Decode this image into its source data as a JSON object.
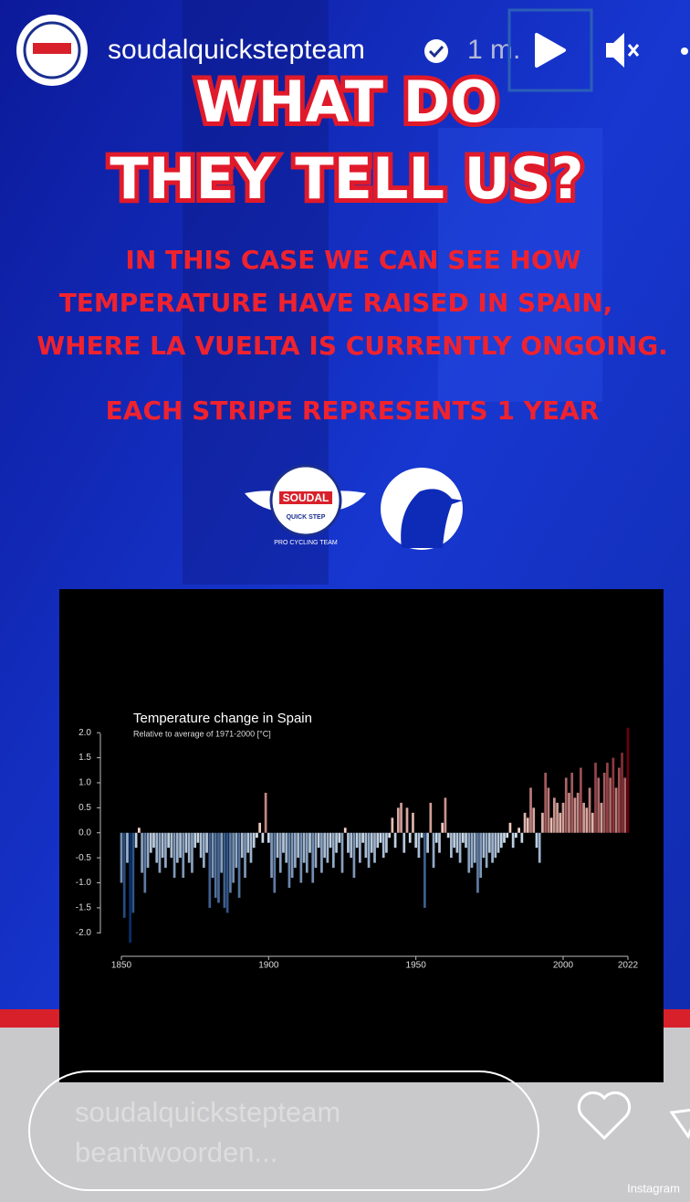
{
  "header": {
    "username": "soudalquickstepteam",
    "time": "1 m."
  },
  "story": {
    "heading": [
      "WHAT DO",
      "THEY TELL US?"
    ],
    "body": [
      "IN THIS CASE WE CAN SEE HOW",
      "TEMPERATURE HAVE RAISED IN SPAIN,",
      "WHERE LA VUELTA IS CURRENTLY ONGOING."
    ],
    "note": "EACH STRIPE REPRESENTS 1 YEAR",
    "logo": {
      "name": "SOUDAL",
      "sub": "QUICK STEP",
      "ring": "PRO CYCLING TEAM"
    }
  },
  "chart_data": {
    "type": "bar",
    "title": "Temperature change in Spain",
    "subtitle": "Relative to average of 1971-2000 [°C]",
    "x": [
      1850,
      1851,
      1852,
      1853,
      1854,
      1855,
      1856,
      1857,
      1858,
      1859,
      1860,
      1861,
      1862,
      1863,
      1864,
      1865,
      1866,
      1867,
      1868,
      1869,
      1870,
      1871,
      1872,
      1873,
      1874,
      1875,
      1876,
      1877,
      1878,
      1879,
      1880,
      1881,
      1882,
      1883,
      1884,
      1885,
      1886,
      1887,
      1888,
      1889,
      1890,
      1891,
      1892,
      1893,
      1894,
      1895,
      1896,
      1897,
      1898,
      1899,
      1900,
      1901,
      1902,
      1903,
      1904,
      1905,
      1906,
      1907,
      1908,
      1909,
      1910,
      1911,
      1912,
      1913,
      1914,
      1915,
      1916,
      1917,
      1918,
      1919,
      1920,
      1921,
      1922,
      1923,
      1924,
      1925,
      1926,
      1927,
      1928,
      1929,
      1930,
      1931,
      1932,
      1933,
      1934,
      1935,
      1936,
      1937,
      1938,
      1939,
      1940,
      1941,
      1942,
      1943,
      1944,
      1945,
      1946,
      1947,
      1948,
      1949,
      1950,
      1951,
      1952,
      1953,
      1954,
      1955,
      1956,
      1957,
      1958,
      1959,
      1960,
      1961,
      1962,
      1963,
      1964,
      1965,
      1966,
      1967,
      1968,
      1969,
      1970,
      1971,
      1972,
      1973,
      1974,
      1975,
      1976,
      1977,
      1978,
      1979,
      1980,
      1981,
      1982,
      1983,
      1984,
      1985,
      1986,
      1987,
      1988,
      1989,
      1990,
      1991,
      1992,
      1993,
      1994,
      1995,
      1996,
      1997,
      1998,
      1999,
      2000,
      2001,
      2002,
      2003,
      2004,
      2005,
      2006,
      2007,
      2008,
      2009,
      2010,
      2011,
      2012,
      2013,
      2014,
      2015,
      2016,
      2017,
      2018,
      2019,
      2020,
      2021,
      2022
    ],
    "values": [
      -1.0,
      -1.7,
      -0.6,
      -2.2,
      -1.6,
      -0.3,
      0.1,
      -0.8,
      -1.2,
      -0.7,
      -0.4,
      -0.3,
      -0.6,
      -0.8,
      -0.5,
      -0.7,
      -0.3,
      -0.5,
      -0.9,
      -0.6,
      -0.5,
      -0.9,
      -0.4,
      -0.6,
      -0.8,
      -0.3,
      -0.2,
      -0.5,
      -0.7,
      -0.4,
      -1.5,
      -0.9,
      -1.3,
      -1.4,
      -0.8,
      -1.5,
      -1.6,
      -1.2,
      -1.0,
      -0.7,
      -1.3,
      -0.5,
      -0.9,
      -0.4,
      -0.6,
      -0.3,
      -0.1,
      0.2,
      -0.2,
      0.8,
      -0.2,
      -0.9,
      -1.2,
      -0.5,
      -0.8,
      -0.4,
      -0.6,
      -1.1,
      -0.9,
      -0.7,
      -0.5,
      -1.0,
      -0.6,
      -0.8,
      -0.4,
      -1.0,
      -0.7,
      -0.3,
      -0.8,
      -0.5,
      -0.6,
      -0.3,
      -0.7,
      -0.4,
      -0.2,
      -0.8,
      0.1,
      -0.4,
      -0.5,
      -0.9,
      -0.3,
      -0.6,
      -0.2,
      -0.5,
      -0.7,
      -0.4,
      -0.6,
      -0.3,
      -0.2,
      -0.5,
      -0.4,
      -0.1,
      0.3,
      -0.3,
      0.5,
      0.6,
      -0.4,
      0.5,
      -0.2,
      0.4,
      -0.3,
      -0.5,
      -0.1,
      -1.5,
      -0.4,
      0.6,
      -0.7,
      -0.2,
      -0.4,
      0.2,
      0.7,
      -0.1,
      -0.5,
      -0.3,
      -0.4,
      -0.6,
      -0.2,
      -0.3,
      -0.8,
      -0.7,
      -0.6,
      -1.2,
      -0.9,
      -0.5,
      -0.7,
      -0.4,
      -0.6,
      -0.5,
      -0.4,
      -0.3,
      -0.2,
      -0.1,
      0.2,
      -0.3,
      -0.1,
      0.1,
      -0.2,
      0.4,
      0.3,
      0.9,
      0.5,
      -0.3,
      -0.6,
      0.4,
      1.2,
      0.9,
      0.3,
      0.7,
      0.6,
      0.4,
      0.6,
      1.1,
      0.8,
      1.2,
      0.7,
      0.8,
      1.3,
      0.6,
      0.5,
      0.9,
      0.4,
      1.4,
      1.1,
      0.6,
      1.2,
      1.4,
      1.1,
      1.5,
      0.9,
      1.3,
      1.6,
      1.1,
      2.1
    ],
    "xlim": [
      1850,
      2022
    ],
    "xticks": [
      1850,
      1900,
      1950,
      2000,
      2022
    ],
    "ylim": [
      -2.25,
      2.15
    ],
    "yticks": [
      {
        "value": 2,
        "label": "2.0"
      },
      {
        "value": 1.5,
        "label": "1.5"
      },
      {
        "value": 1,
        "label": "1.0"
      },
      {
        "value": 0.5,
        "label": "0.5"
      },
      {
        "value": 0,
        "label": "0.0"
      },
      {
        "value": -0.5,
        "label": "-0.5"
      },
      {
        "value": -1,
        "label": "-1.0"
      },
      {
        "value": -1.5,
        "label": "-1.5"
      },
      {
        "value": -2,
        "label": "-2.0"
      }
    ]
  },
  "footer": {
    "reply_placeholder": "soudalquickstepteam beantwoorden...",
    "brand": "Instagram"
  }
}
